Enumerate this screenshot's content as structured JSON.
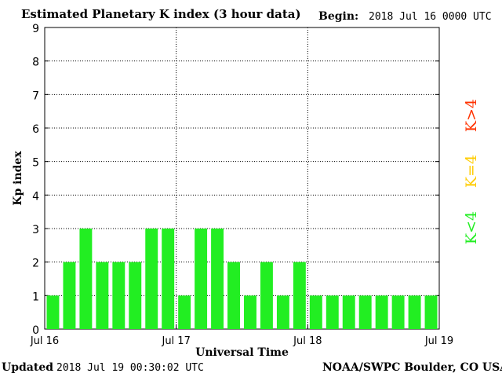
{
  "header": {
    "title": "Estimated Planetary K index (3 hour data)",
    "begin_label": "Begin:",
    "begin_value": "2018 Jul 16 0000 UTC"
  },
  "footer": {
    "updated_label": "Updated",
    "updated_value": "2018 Jul 19 00:30:02 UTC",
    "source": "NOAA/SWPC Boulder, CO USA"
  },
  "legend": [
    {
      "label": "K<4",
      "color": "#22ee22"
    },
    {
      "label": "K=4",
      "color": "#ffcc00"
    },
    {
      "label": "K>4",
      "color": "#ff3300"
    }
  ],
  "chart_data": {
    "type": "bar",
    "title": "Estimated Planetary K index (3 hour data)",
    "xlabel": "Universal Time",
    "ylabel": "Kp index",
    "ylim": [
      0,
      9
    ],
    "yticks": [
      0,
      1,
      2,
      3,
      4,
      5,
      6,
      7,
      8,
      9
    ],
    "x_tick_labels": [
      "Jul 16",
      "Jul 17",
      "Jul 18",
      "Jul 19"
    ],
    "grid": true,
    "bar_color": "#22ee22",
    "series": [
      {
        "values": [
          1,
          2,
          3,
          2,
          2,
          2,
          3,
          3,
          1,
          3,
          3,
          2,
          1,
          2,
          1,
          2,
          1,
          1,
          1,
          1,
          1,
          1,
          1,
          1
        ]
      }
    ]
  }
}
